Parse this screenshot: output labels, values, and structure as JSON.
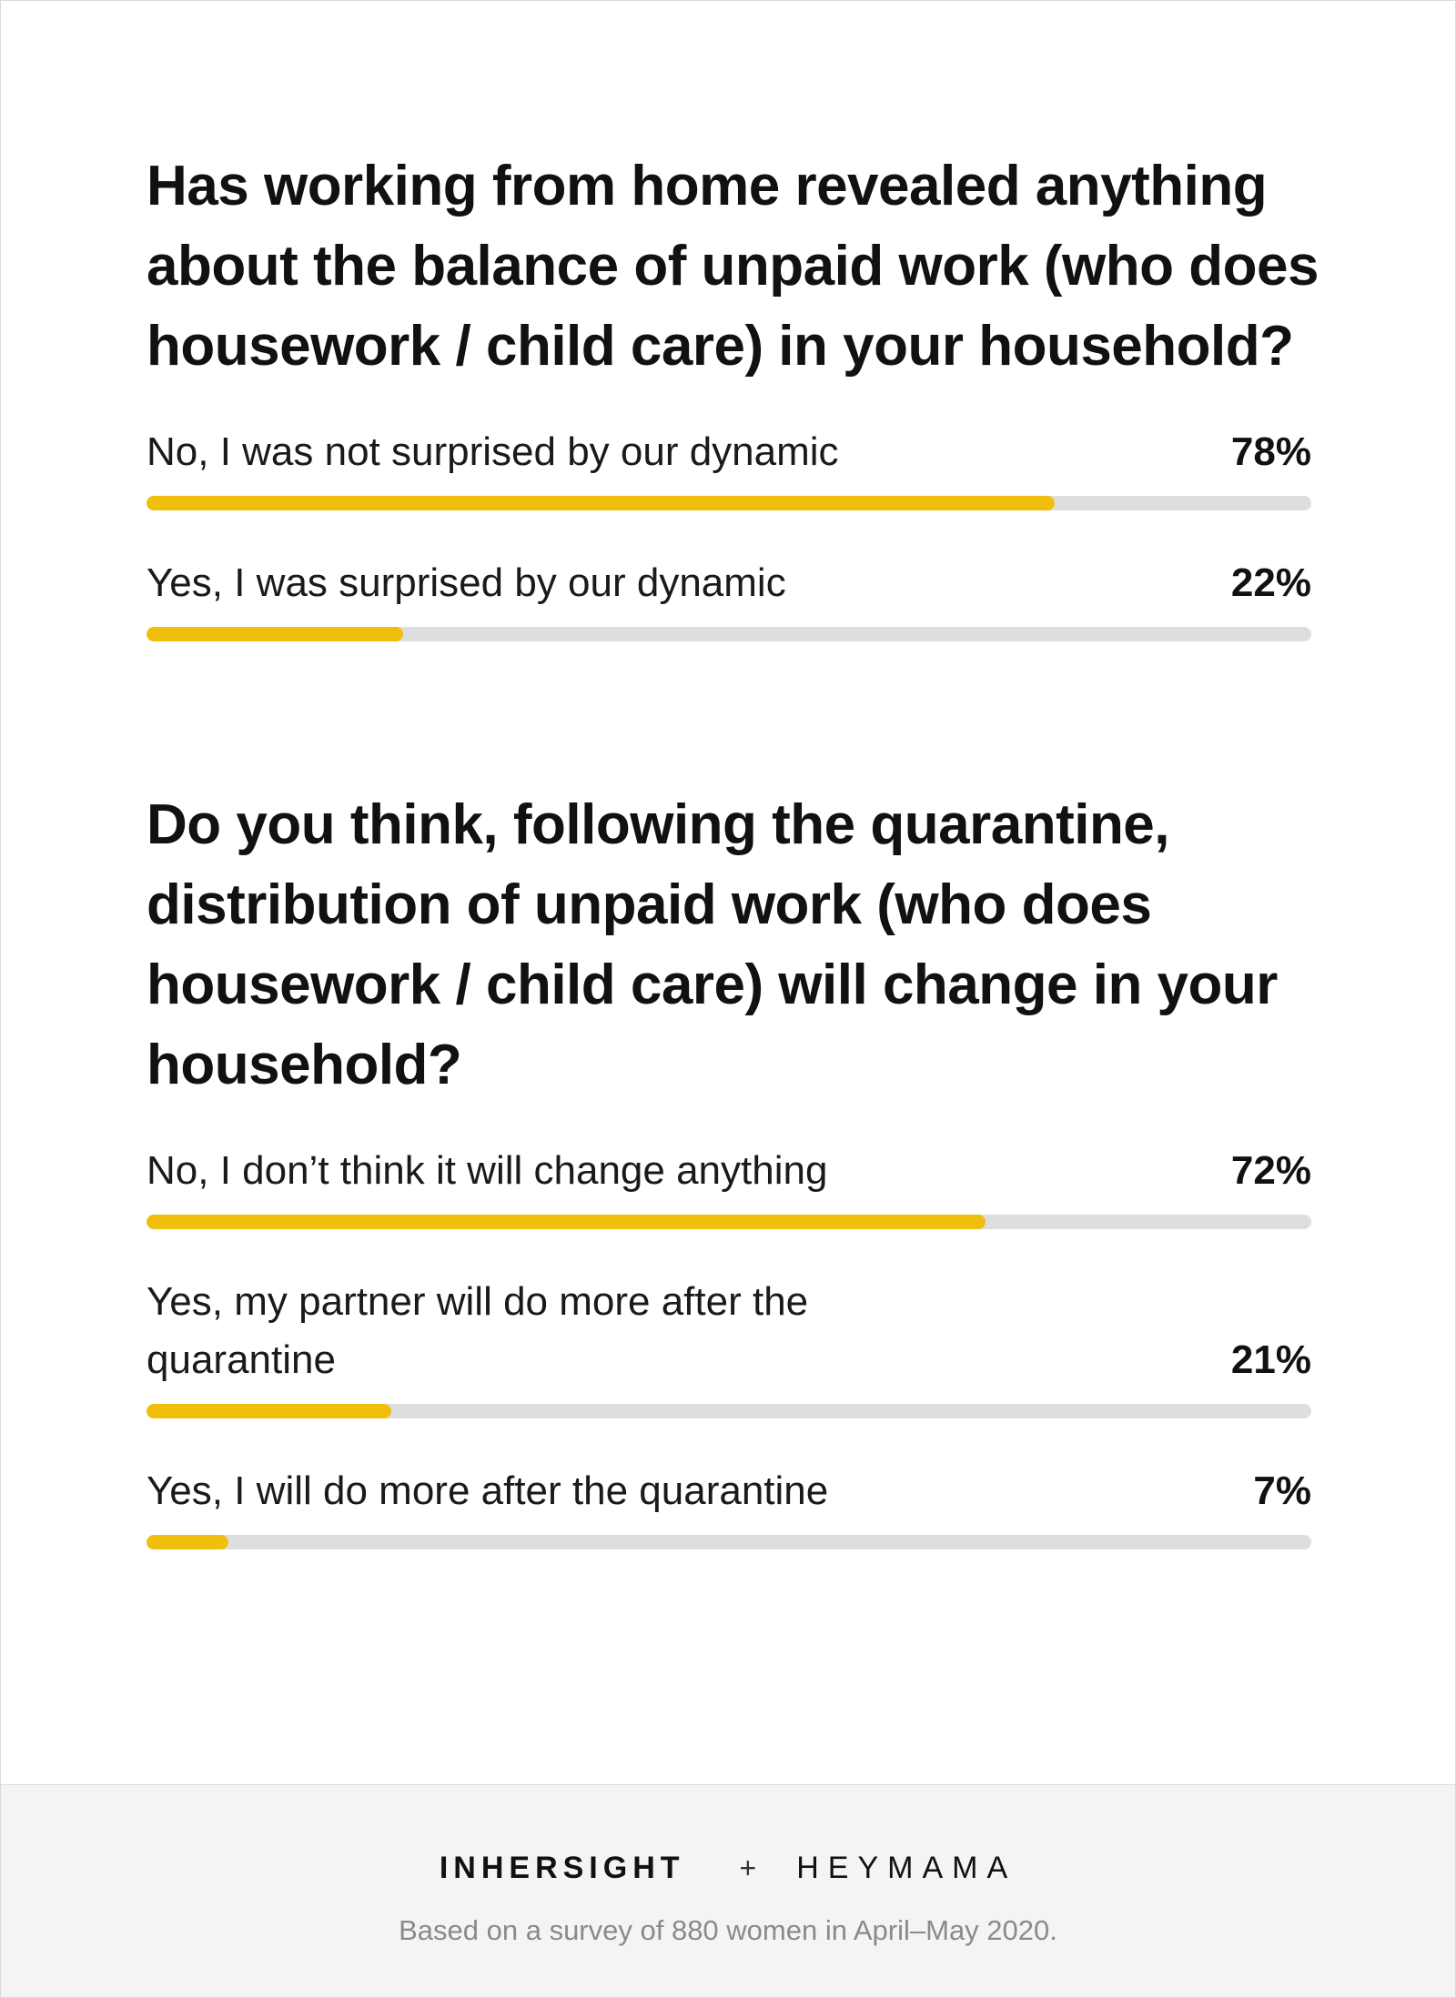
{
  "chart_data": [
    {
      "type": "bar",
      "title": "Has working from home revealed anything about the balance of unpaid work (who does housework / child care) in your household?",
      "categories": [
        "No, I was not surprised by our dynamic",
        "Yes, I was surprised by our dynamic"
      ],
      "value_labels": [
        "78%",
        "22%"
      ],
      "values": [
        78,
        22
      ],
      "ylim": [
        0,
        100
      ]
    },
    {
      "type": "bar",
      "title": "Do you think, following the quarantine, distribution of unpaid work (who does housework / child care) will change in your household?",
      "categories": [
        "No, I don’t think it will change anything",
        "Yes, my partner will do more after the quarantine",
        "Yes, I will do more after the quarantine"
      ],
      "value_labels": [
        "72%",
        "21%",
        "7%"
      ],
      "values": [
        72,
        21,
        7
      ],
      "ylim": [
        0,
        100
      ]
    }
  ],
  "colors": {
    "bar_fill": "#f0bf0c",
    "bar_track": "#dedede"
  },
  "footer": {
    "brand_left": "INHERSIGHT",
    "separator": "+",
    "brand_right": "HEYMAMA",
    "note": "Based on a survey of 880 women in April–May 2020."
  }
}
